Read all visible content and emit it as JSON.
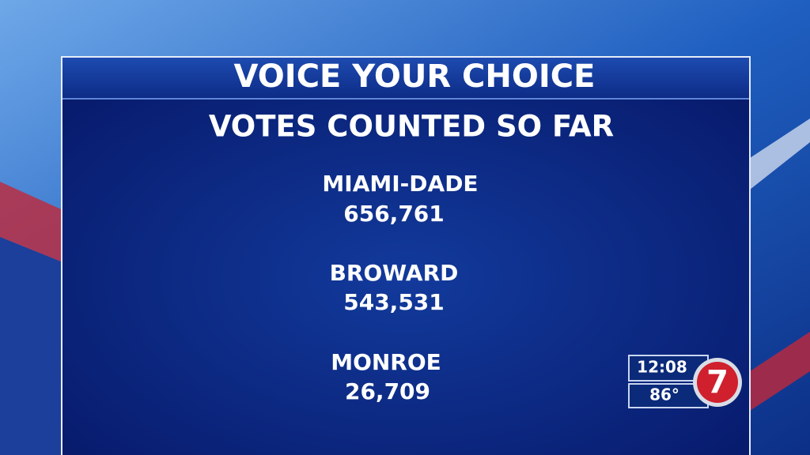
{
  "header": {
    "title": "VOICE YOUR CHOICE",
    "subtitle": "VOTES COUNTED SO FAR"
  },
  "counties": [
    {
      "name": "MIAMI-DADE",
      "votes": "656,761"
    },
    {
      "name": "BROWARD",
      "votes": "543,531"
    },
    {
      "name": "MONROE",
      "votes": "26,709"
    }
  ],
  "station_bug": {
    "time": "12:08",
    "temperature": "86°",
    "logo": "7"
  }
}
